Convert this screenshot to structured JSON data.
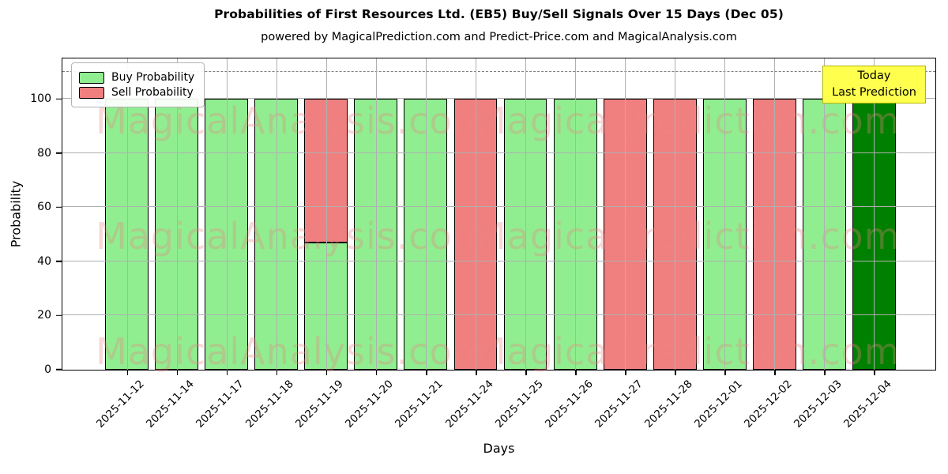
{
  "figure": {
    "title": "Probabilities of First Resources Ltd. (EB5) Buy/Sell Signals Over 15 Days (Dec 05)",
    "subtitle": "powered by MagicalPrediction.com and Predict-Price.com and MagicalAnalysis.com",
    "xlabel": "Days",
    "ylabel": "Probability",
    "legend": {
      "buy_label": "Buy Probability",
      "sell_label": "Sell Probability"
    },
    "annotation": {
      "line1": "Today",
      "line2": "Last Prediction",
      "bg_color": "#FFFF4D",
      "border_color": "#B5B500"
    },
    "watermarks": {
      "left_text": "MagicalAnalysis.com",
      "right_text": "MagicalPrediction.com"
    }
  },
  "chart_data": {
    "type": "bar",
    "stacked": true,
    "title": "Probabilities of First Resources Ltd. (EB5) Buy/Sell Signals Over 15 Days (Dec 05)",
    "subtitle": "powered by MagicalPrediction.com and Predict-Price.com and MagicalAnalysis.com",
    "xlabel": "Days",
    "ylabel": "Probability",
    "ylim": [
      0,
      115
    ],
    "yticks": [
      0,
      20,
      40,
      60,
      80,
      100
    ],
    "dashed_line_y": 110,
    "grid": true,
    "legend_position": "upper left",
    "categories": [
      "2025-11-12",
      "2025-11-14",
      "2025-11-17",
      "2025-11-18",
      "2025-11-19",
      "2025-11-20",
      "2025-11-21",
      "2025-11-24",
      "2025-11-25",
      "2025-11-26",
      "2025-11-27",
      "2025-11-28",
      "2025-12-01",
      "2025-12-02",
      "2025-12-03",
      "2025-12-04"
    ],
    "series": [
      {
        "name": "Buy Probability",
        "color": "#90EE90",
        "values": [
          100,
          100,
          100,
          100,
          47,
          100,
          100,
          0,
          100,
          100,
          0,
          0,
          100,
          0,
          100,
          100
        ]
      },
      {
        "name": "Sell Probability",
        "color": "#F08080",
        "values": [
          0,
          0,
          0,
          0,
          53,
          0,
          0,
          100,
          0,
          0,
          100,
          100,
          0,
          100,
          0,
          0
        ]
      }
    ],
    "today_index": 15,
    "today_date": "2025-12-04",
    "colors": {
      "buy": "#90EE90",
      "sell": "#F08080",
      "today_buy": "#008000",
      "edge": "#000000",
      "grid": "#b0b0b0"
    }
  }
}
